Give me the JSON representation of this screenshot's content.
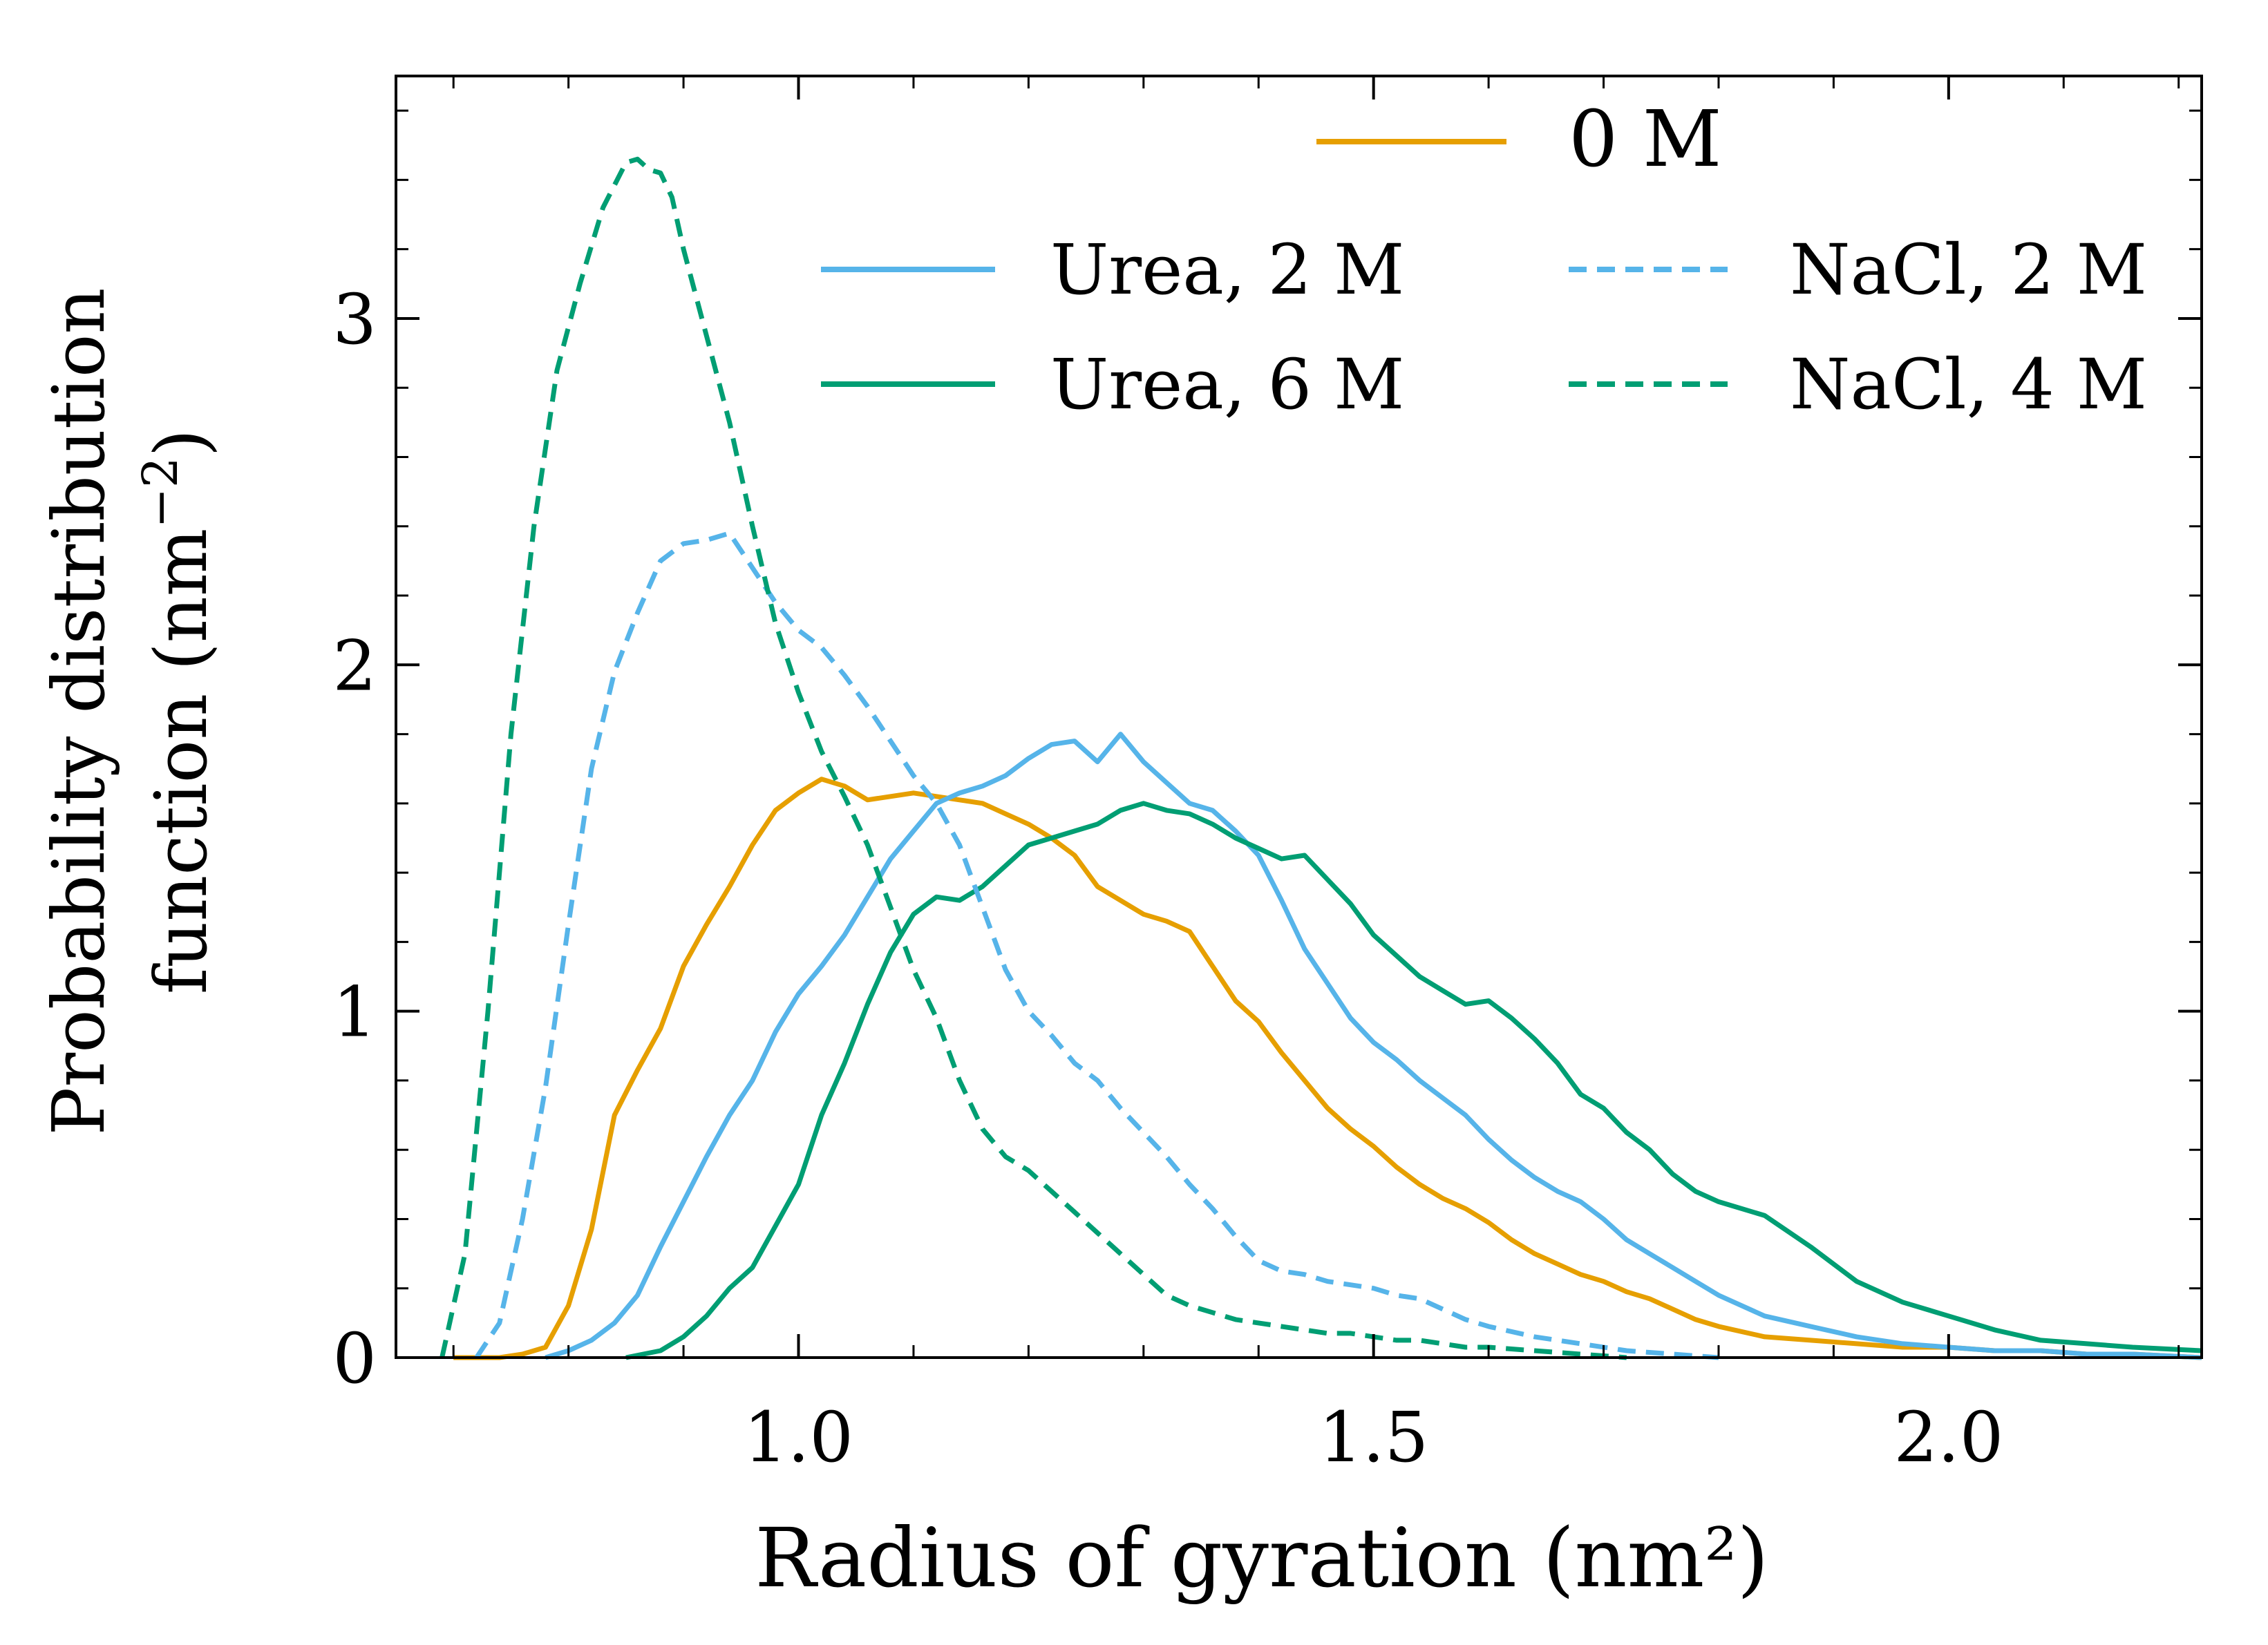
{
  "chart_data": {
    "type": "line",
    "xlabel": "Radius of gyration (nm²)",
    "ylabel_line1": "Probability distribution",
    "ylabel_line2": "function (nm",
    "ylabel_sup": "−2",
    "ylabel_close": ")",
    "xlim": [
      0.65,
      2.22
    ],
    "ylim": [
      0,
      3.7
    ],
    "xticks": [
      1.0,
      1.5,
      2.0
    ],
    "xtick_labels": [
      "1.0",
      "1.5",
      "2.0"
    ],
    "yticks": [
      0,
      1,
      2,
      3
    ],
    "ytick_labels": [
      "0",
      "1",
      "2",
      "3"
    ],
    "grid": false,
    "legend_placement": "top-right",
    "colors": {
      "orange": "#e69f00",
      "sky": "#56b4e9",
      "green": "#009e73"
    },
    "series": [
      {
        "name": "0 M",
        "color": "#e69f00",
        "dash": "solid",
        "x": [
          0.7,
          0.72,
          0.74,
          0.76,
          0.78,
          0.8,
          0.82,
          0.84,
          0.86,
          0.88,
          0.9,
          0.92,
          0.94,
          0.96,
          0.98,
          1.0,
          1.02,
          1.04,
          1.06,
          1.08,
          1.1,
          1.12,
          1.14,
          1.16,
          1.18,
          1.2,
          1.22,
          1.24,
          1.26,
          1.28,
          1.3,
          1.32,
          1.34,
          1.36,
          1.38,
          1.4,
          1.42,
          1.44,
          1.46,
          1.48,
          1.5,
          1.52,
          1.54,
          1.56,
          1.58,
          1.6,
          1.62,
          1.64,
          1.66,
          1.68,
          1.7,
          1.72,
          1.74,
          1.76,
          1.78,
          1.8,
          1.84,
          1.88,
          1.92,
          1.96,
          2.0,
          2.04,
          2.08,
          2.12,
          2.16,
          2.22
        ],
        "y": [
          0.0,
          0.0,
          0.0,
          0.01,
          0.03,
          0.15,
          0.37,
          0.7,
          0.83,
          0.95,
          1.13,
          1.25,
          1.36,
          1.48,
          1.58,
          1.63,
          1.67,
          1.65,
          1.61,
          1.62,
          1.63,
          1.62,
          1.61,
          1.6,
          1.57,
          1.54,
          1.5,
          1.45,
          1.36,
          1.32,
          1.28,
          1.26,
          1.23,
          1.13,
          1.03,
          0.97,
          0.88,
          0.8,
          0.72,
          0.66,
          0.61,
          0.55,
          0.5,
          0.46,
          0.43,
          0.39,
          0.34,
          0.3,
          0.27,
          0.24,
          0.22,
          0.19,
          0.17,
          0.14,
          0.11,
          0.09,
          0.06,
          0.05,
          0.04,
          0.03,
          0.03,
          0.02,
          0.02,
          0.01,
          0.01,
          0.0
        ]
      },
      {
        "name": "Urea, 2 M",
        "color": "#56b4e9",
        "dash": "solid",
        "x": [
          0.78,
          0.8,
          0.82,
          0.84,
          0.86,
          0.88,
          0.9,
          0.92,
          0.94,
          0.96,
          0.98,
          1.0,
          1.02,
          1.04,
          1.06,
          1.08,
          1.1,
          1.12,
          1.14,
          1.16,
          1.18,
          1.2,
          1.22,
          1.24,
          1.26,
          1.28,
          1.3,
          1.32,
          1.34,
          1.36,
          1.38,
          1.4,
          1.42,
          1.44,
          1.46,
          1.48,
          1.5,
          1.52,
          1.54,
          1.56,
          1.58,
          1.6,
          1.62,
          1.64,
          1.66,
          1.68,
          1.7,
          1.72,
          1.74,
          1.76,
          1.78,
          1.8,
          1.84,
          1.88,
          1.92,
          1.96,
          2.0,
          2.04,
          2.08,
          2.12,
          2.16,
          2.22
        ],
        "y": [
          0.0,
          0.02,
          0.05,
          0.1,
          0.18,
          0.32,
          0.45,
          0.58,
          0.7,
          0.8,
          0.94,
          1.05,
          1.13,
          1.22,
          1.33,
          1.44,
          1.52,
          1.6,
          1.63,
          1.65,
          1.68,
          1.73,
          1.77,
          1.78,
          1.72,
          1.8,
          1.72,
          1.66,
          1.6,
          1.58,
          1.52,
          1.45,
          1.32,
          1.18,
          1.08,
          0.98,
          0.91,
          0.86,
          0.8,
          0.75,
          0.7,
          0.63,
          0.57,
          0.52,
          0.48,
          0.45,
          0.4,
          0.34,
          0.3,
          0.26,
          0.22,
          0.18,
          0.12,
          0.09,
          0.06,
          0.04,
          0.03,
          0.02,
          0.02,
          0.01,
          0.01,
          0.0
        ]
      },
      {
        "name": "Urea, 6 M",
        "color": "#009e73",
        "dash": "solid",
        "x": [
          0.85,
          0.88,
          0.9,
          0.92,
          0.94,
          0.96,
          0.98,
          1.0,
          1.02,
          1.04,
          1.06,
          1.08,
          1.1,
          1.12,
          1.14,
          1.16,
          1.18,
          1.2,
          1.22,
          1.24,
          1.26,
          1.28,
          1.3,
          1.32,
          1.34,
          1.36,
          1.38,
          1.4,
          1.42,
          1.44,
          1.46,
          1.48,
          1.5,
          1.52,
          1.54,
          1.56,
          1.58,
          1.6,
          1.62,
          1.64,
          1.66,
          1.68,
          1.7,
          1.72,
          1.74,
          1.76,
          1.78,
          1.8,
          1.84,
          1.88,
          1.92,
          1.96,
          2.0,
          2.04,
          2.08,
          2.12,
          2.16,
          2.22
        ],
        "y": [
          0.0,
          0.02,
          0.06,
          0.12,
          0.2,
          0.26,
          0.38,
          0.5,
          0.7,
          0.85,
          1.02,
          1.17,
          1.28,
          1.33,
          1.32,
          1.36,
          1.42,
          1.48,
          1.5,
          1.52,
          1.54,
          1.58,
          1.6,
          1.58,
          1.57,
          1.54,
          1.5,
          1.47,
          1.44,
          1.45,
          1.38,
          1.31,
          1.22,
          1.16,
          1.1,
          1.06,
          1.02,
          1.03,
          0.98,
          0.92,
          0.85,
          0.76,
          0.72,
          0.65,
          0.6,
          0.53,
          0.48,
          0.45,
          0.41,
          0.32,
          0.22,
          0.16,
          0.12,
          0.08,
          0.05,
          0.04,
          0.03,
          0.02
        ]
      },
      {
        "name": "NaCl, 2 M",
        "color": "#56b4e9",
        "dash": "dashed",
        "x": [
          0.72,
          0.74,
          0.76,
          0.78,
          0.8,
          0.82,
          0.84,
          0.86,
          0.88,
          0.9,
          0.92,
          0.94,
          0.96,
          0.98,
          1.0,
          1.02,
          1.04,
          1.06,
          1.08,
          1.1,
          1.12,
          1.14,
          1.16,
          1.18,
          1.2,
          1.22,
          1.24,
          1.26,
          1.28,
          1.3,
          1.32,
          1.34,
          1.36,
          1.38,
          1.4,
          1.42,
          1.44,
          1.46,
          1.48,
          1.5,
          1.52,
          1.54,
          1.56,
          1.58,
          1.6,
          1.64,
          1.68,
          1.72,
          1.76,
          1.8
        ],
        "y": [
          0.0,
          0.1,
          0.4,
          0.78,
          1.25,
          1.7,
          1.98,
          2.15,
          2.3,
          2.35,
          2.36,
          2.38,
          2.28,
          2.18,
          2.1,
          2.05,
          1.97,
          1.88,
          1.78,
          1.68,
          1.6,
          1.48,
          1.3,
          1.12,
          1.0,
          0.93,
          0.85,
          0.8,
          0.72,
          0.65,
          0.58,
          0.5,
          0.43,
          0.35,
          0.28,
          0.25,
          0.24,
          0.22,
          0.21,
          0.2,
          0.18,
          0.17,
          0.14,
          0.11,
          0.09,
          0.06,
          0.04,
          0.02,
          0.01,
          0.0
        ]
      },
      {
        "name": "NaCl, 4 M",
        "color": "#009e73",
        "dash": "dashed",
        "x": [
          0.69,
          0.71,
          0.73,
          0.75,
          0.77,
          0.79,
          0.81,
          0.83,
          0.85,
          0.86,
          0.87,
          0.88,
          0.89,
          0.9,
          0.92,
          0.94,
          0.96,
          0.98,
          1.0,
          1.02,
          1.04,
          1.06,
          1.08,
          1.1,
          1.12,
          1.14,
          1.16,
          1.18,
          1.2,
          1.22,
          1.24,
          1.26,
          1.28,
          1.3,
          1.32,
          1.34,
          1.36,
          1.38,
          1.4,
          1.42,
          1.44,
          1.46,
          1.48,
          1.5,
          1.52,
          1.54,
          1.56,
          1.58,
          1.6,
          1.64,
          1.68,
          1.72
        ],
        "y": [
          0.0,
          0.3,
          1.0,
          1.8,
          2.4,
          2.85,
          3.1,
          3.32,
          3.45,
          3.46,
          3.43,
          3.42,
          3.35,
          3.2,
          2.95,
          2.7,
          2.4,
          2.12,
          1.92,
          1.75,
          1.62,
          1.48,
          1.3,
          1.12,
          0.98,
          0.8,
          0.66,
          0.58,
          0.54,
          0.48,
          0.42,
          0.36,
          0.3,
          0.24,
          0.18,
          0.15,
          0.13,
          0.11,
          0.1,
          0.09,
          0.08,
          0.07,
          0.07,
          0.06,
          0.05,
          0.05,
          0.04,
          0.03,
          0.03,
          0.02,
          0.01,
          0.0
        ]
      }
    ]
  }
}
